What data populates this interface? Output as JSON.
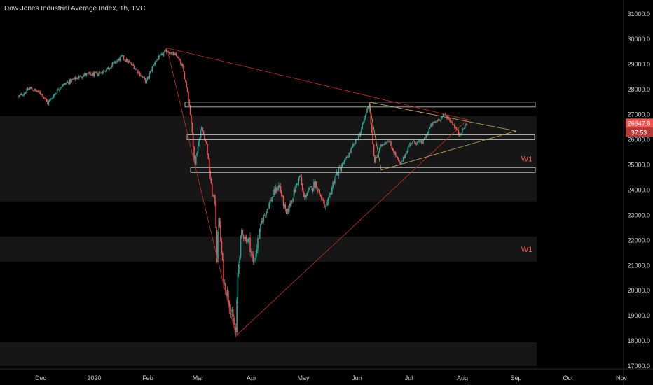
{
  "chart_title": "Dow Jones Industrial Average Index, 1h, TVC",
  "chart_data": {
    "type": "candlestick",
    "title": "Dow Jones Industrial Average Index, 1h, TVC",
    "x_ticks": [
      {
        "label": "Dec",
        "date": "2019-12-01"
      },
      {
        "label": "2020",
        "date": "2020-01-01"
      },
      {
        "label": "Feb",
        "date": "2020-02-01"
      },
      {
        "label": "Mar",
        "date": "2020-03-01"
      },
      {
        "label": "Apr",
        "date": "2020-04-01"
      },
      {
        "label": "May",
        "date": "2020-05-01"
      },
      {
        "label": "Jun",
        "date": "2020-06-01"
      },
      {
        "label": "Jul",
        "date": "2020-07-01"
      },
      {
        "label": "Aug",
        "date": "2020-08-01"
      },
      {
        "label": "Sep",
        "date": "2020-09-01"
      },
      {
        "label": "Oct",
        "date": "2020-10-01"
      },
      {
        "label": "Nov",
        "date": "2020-11-01"
      }
    ],
    "y_ticks": [
      "31000.0",
      "30000.0",
      "29000.0",
      "28000.0",
      "27000.0",
      "26000.0",
      "25000.0",
      "24000.0",
      "23000.0",
      "22000.0",
      "21000.0",
      "20000.0",
      "19000.0",
      "18000.0",
      "17000.0"
    ],
    "ylim": [
      16900,
      31300
    ],
    "price_path": [
      [
        "2019-11-18",
        27700
      ],
      [
        "2019-11-25",
        28050
      ],
      [
        "2019-12-02",
        27800
      ],
      [
        "2019-12-05",
        27450
      ],
      [
        "2019-12-12",
        28100
      ],
      [
        "2019-12-20",
        28400
      ],
      [
        "2019-12-27",
        28600
      ],
      [
        "2020-01-03",
        28600
      ],
      [
        "2020-01-08",
        28800
      ],
      [
        "2020-01-17",
        29300
      ],
      [
        "2020-01-24",
        28900
      ],
      [
        "2020-01-31",
        28300
      ],
      [
        "2020-02-05",
        29100
      ],
      [
        "2020-02-12",
        29550
      ],
      [
        "2020-02-18",
        29300
      ],
      [
        "2020-02-21",
        28900
      ],
      [
        "2020-02-24",
        27900
      ],
      [
        "2020-02-26",
        26800
      ],
      [
        "2020-02-28",
        25000
      ],
      [
        "2020-03-03",
        26500
      ],
      [
        "2020-03-06",
        25800
      ],
      [
        "2020-03-09",
        23900
      ],
      [
        "2020-03-11",
        23500
      ],
      [
        "2020-03-12",
        21200
      ],
      [
        "2020-03-13",
        23000
      ],
      [
        "2020-03-16",
        20300
      ],
      [
        "2020-03-18",
        19900
      ],
      [
        "2020-03-20",
        19200
      ],
      [
        "2020-03-23",
        18300
      ],
      [
        "2020-03-24",
        20600
      ],
      [
        "2020-03-26",
        22300
      ],
      [
        "2020-03-31",
        21900
      ],
      [
        "2020-04-02",
        21000
      ],
      [
        "2020-04-07",
        22800
      ],
      [
        "2020-04-14",
        23900
      ],
      [
        "2020-04-17",
        24200
      ],
      [
        "2020-04-21",
        23000
      ],
      [
        "2020-04-29",
        24600
      ],
      [
        "2020-05-01",
        23700
      ],
      [
        "2020-05-08",
        24300
      ],
      [
        "2020-05-14",
        23200
      ],
      [
        "2020-05-19",
        24500
      ],
      [
        "2020-05-27",
        25400
      ],
      [
        "2020-06-03",
        26300
      ],
      [
        "2020-06-08",
        27500
      ],
      [
        "2020-06-11",
        25100
      ],
      [
        "2020-06-15",
        25800
      ],
      [
        "2020-06-19",
        26000
      ],
      [
        "2020-06-26",
        25000
      ],
      [
        "2020-07-02",
        25900
      ],
      [
        "2020-07-09",
        25900
      ],
      [
        "2020-07-14",
        26600
      ],
      [
        "2020-07-22",
        27000
      ],
      [
        "2020-07-27",
        26600
      ],
      [
        "2020-07-30",
        26200
      ],
      [
        "2020-08-04",
        26700
      ]
    ],
    "current_price": "26647.8",
    "countdown": "37:53",
    "horizontal_levels": [
      27400,
      26100,
      24800
    ],
    "zones": [
      {
        "top": 26950,
        "bottom": 23550,
        "label": "W1"
      },
      {
        "top": 22150,
        "bottom": 21150,
        "label": "W1"
      },
      {
        "top": 17950,
        "bottom": 17000,
        "label": ""
      }
    ],
    "red_wedge": [
      [
        "2020-02-12",
        29650
      ],
      [
        "2020-03-23",
        18200
      ],
      [
        "2020-08-04",
        26800
      ]
    ],
    "gold_triangle": [
      [
        "2020-06-08",
        27500
      ],
      [
        "2020-06-15",
        24800
      ],
      [
        "2020-09-01",
        26350
      ]
    ],
    "colors": {
      "up": "#26a69a",
      "down": "#ef5350",
      "red_line": "#b22a2a",
      "gold_line": "#b39a5a",
      "level_line": "#cfcfcf",
      "zone": "#161616",
      "price_badge": "#ef5350",
      "grid_border": "#2a2a2a",
      "axis_text": "#c8c8c8"
    }
  }
}
